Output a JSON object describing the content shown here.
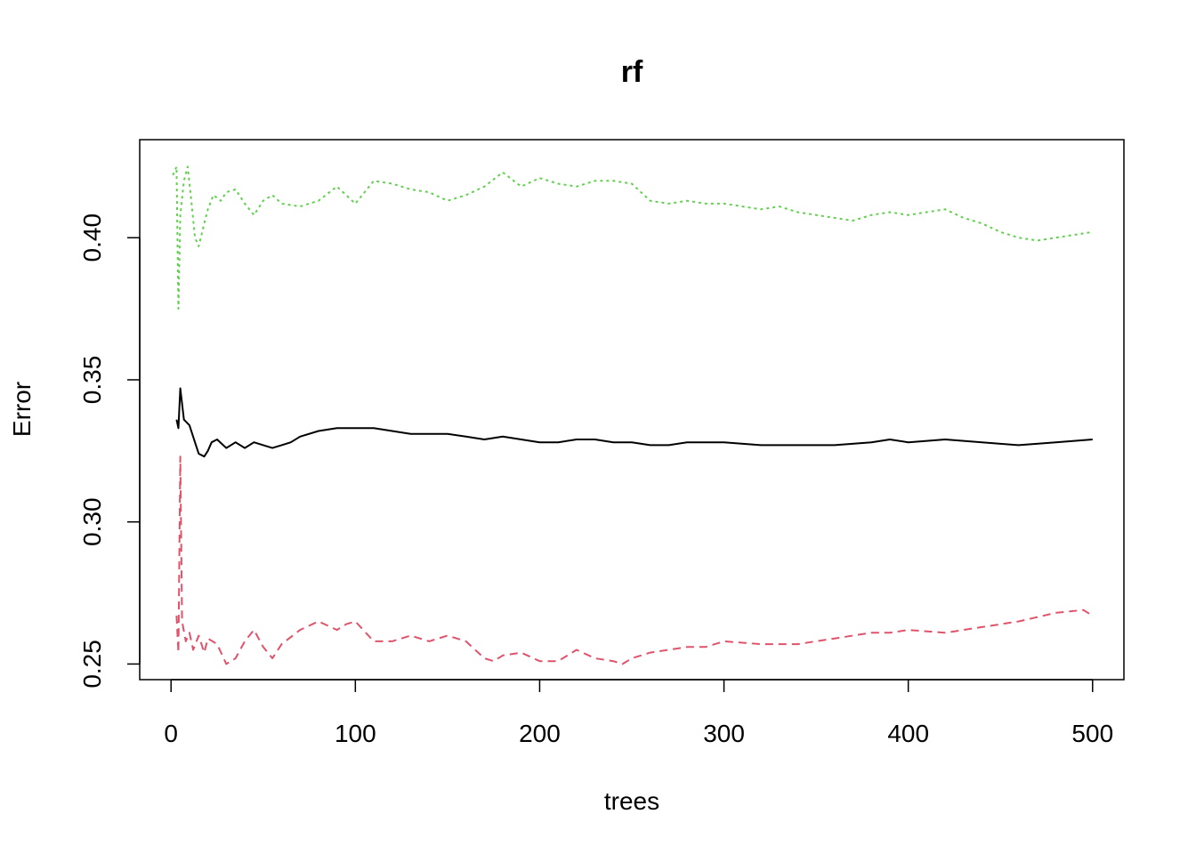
{
  "chart_data": {
    "type": "line",
    "title": "rf",
    "xlabel": "trees",
    "ylabel": "Error",
    "xlim": [
      -17,
      517
    ],
    "ylim": [
      0.2445,
      0.4345
    ],
    "x_ticks": [
      0,
      100,
      200,
      300,
      400,
      500
    ],
    "x_tick_labels": [
      "0",
      "100",
      "200",
      "300",
      "400",
      "500"
    ],
    "y_ticks": [
      0.25,
      0.3,
      0.35,
      0.4
    ],
    "y_tick_labels": [
      "0.25",
      "0.30",
      "0.35",
      "0.40"
    ],
    "grid": false,
    "legend": "none",
    "series": [
      {
        "color": "#000000",
        "dash": "solid",
        "x": [
          3,
          4,
          5,
          7,
          10,
          13,
          15,
          18,
          20,
          22,
          25,
          30,
          35,
          40,
          45,
          50,
          55,
          60,
          65,
          70,
          80,
          90,
          100,
          110,
          120,
          130,
          140,
          150,
          160,
          170,
          180,
          190,
          200,
          210,
          220,
          230,
          240,
          250,
          260,
          270,
          280,
          290,
          300,
          320,
          340,
          360,
          380,
          390,
          400,
          420,
          440,
          460,
          480,
          500
        ],
        "y": [
          0.336,
          0.333,
          0.347,
          0.336,
          0.334,
          0.328,
          0.324,
          0.323,
          0.325,
          0.328,
          0.329,
          0.326,
          0.328,
          0.326,
          0.328,
          0.327,
          0.326,
          0.327,
          0.328,
          0.33,
          0.332,
          0.333,
          0.333,
          0.333,
          0.332,
          0.331,
          0.331,
          0.331,
          0.33,
          0.329,
          0.33,
          0.329,
          0.328,
          0.328,
          0.329,
          0.329,
          0.328,
          0.328,
          0.327,
          0.327,
          0.328,
          0.328,
          0.328,
          0.327,
          0.327,
          0.327,
          0.328,
          0.329,
          0.328,
          0.329,
          0.328,
          0.327,
          0.328,
          0.329
        ]
      },
      {
        "color": "#DF536B",
        "dash": "dashed",
        "x": [
          3,
          4,
          5,
          6,
          8,
          10,
          12,
          15,
          18,
          20,
          25,
          30,
          35,
          40,
          45,
          50,
          55,
          60,
          70,
          80,
          90,
          95,
          100,
          110,
          120,
          130,
          140,
          150,
          160,
          170,
          175,
          180,
          190,
          200,
          210,
          220,
          230,
          240,
          245,
          250,
          260,
          270,
          280,
          290,
          300,
          320,
          340,
          360,
          370,
          380,
          390,
          400,
          420,
          440,
          460,
          480,
          495,
          500
        ],
        "y": [
          0.267,
          0.254,
          0.323,
          0.265,
          0.258,
          0.261,
          0.255,
          0.26,
          0.254,
          0.259,
          0.257,
          0.25,
          0.252,
          0.258,
          0.262,
          0.256,
          0.252,
          0.257,
          0.262,
          0.265,
          0.262,
          0.264,
          0.265,
          0.258,
          0.258,
          0.26,
          0.258,
          0.26,
          0.258,
          0.252,
          0.251,
          0.253,
          0.254,
          0.251,
          0.251,
          0.255,
          0.252,
          0.251,
          0.25,
          0.252,
          0.254,
          0.255,
          0.256,
          0.256,
          0.258,
          0.257,
          0.257,
          0.259,
          0.26,
          0.261,
          0.261,
          0.262,
          0.261,
          0.263,
          0.265,
          0.268,
          0.269,
          0.267
        ]
      },
      {
        "color": "#61D04F",
        "dash": "dotted",
        "x": [
          1,
          3,
          4,
          5,
          7,
          9,
          11,
          13,
          15,
          18,
          20,
          23,
          27,
          30,
          35,
          40,
          45,
          50,
          55,
          60,
          70,
          80,
          90,
          100,
          110,
          120,
          130,
          140,
          150,
          160,
          170,
          180,
          190,
          200,
          210,
          220,
          230,
          240,
          250,
          260,
          270,
          280,
          290,
          300,
          310,
          320,
          330,
          340,
          350,
          360,
          370,
          380,
          390,
          400,
          410,
          420,
          430,
          440,
          450,
          460,
          470,
          480,
          490,
          500
        ],
        "y": [
          0.422,
          0.425,
          0.375,
          0.408,
          0.42,
          0.425,
          0.413,
          0.4,
          0.397,
          0.405,
          0.41,
          0.415,
          0.413,
          0.416,
          0.417,
          0.412,
          0.408,
          0.413,
          0.415,
          0.412,
          0.411,
          0.413,
          0.418,
          0.412,
          0.42,
          0.419,
          0.417,
          0.416,
          0.413,
          0.415,
          0.418,
          0.423,
          0.418,
          0.421,
          0.419,
          0.418,
          0.42,
          0.42,
          0.419,
          0.413,
          0.412,
          0.413,
          0.412,
          0.412,
          0.411,
          0.41,
          0.411,
          0.409,
          0.408,
          0.407,
          0.406,
          0.408,
          0.409,
          0.408,
          0.409,
          0.41,
          0.407,
          0.405,
          0.402,
          0.4,
          0.399,
          0.4,
          0.401,
          0.402
        ]
      }
    ]
  }
}
